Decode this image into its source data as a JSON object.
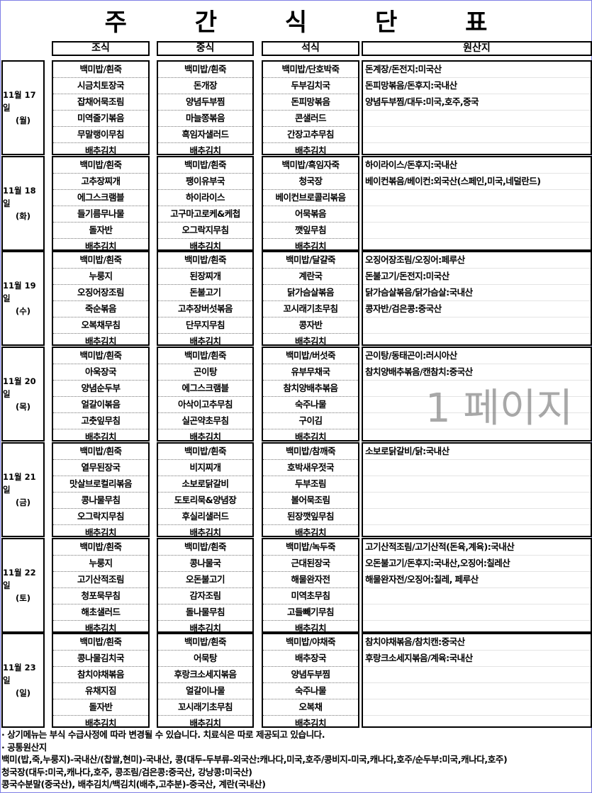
{
  "title": "주 간 식 단 표",
  "headers": {
    "breakfast": "조식",
    "lunch": "중식",
    "dinner": "석식",
    "origin": "원산지"
  },
  "watermark": "1 페이지",
  "days": [
    {
      "date": "11월 17일",
      "weekday": "(월)",
      "breakfast": [
        "백미밥/흰죽",
        "시금치토장국",
        "잡채어묵조림",
        "미역줄기볶음",
        "무말랭이무침",
        "배추김치"
      ],
      "lunch": [
        "백미밥/흰죽",
        "돈개장",
        "양념두부찜",
        "마늘쫑볶음",
        "흑임자샐러드",
        "배추김치"
      ],
      "dinner": [
        "백미밥/단호박죽",
        "두부김치국",
        "돈피망볶음",
        "콘샐러드",
        "간장고추무침",
        "배추김치"
      ],
      "origin": [
        "돈계장/돈전지:미국산",
        "돈피망볶음/돈후지:국내산",
        "양념두부찜/대두:미국,호주,중국",
        "",
        "",
        ""
      ]
    },
    {
      "date": "11월 18일",
      "weekday": "(화)",
      "breakfast": [
        "백미밥/흰죽",
        "고추장찌개",
        "에그스크램블",
        "들기름무나물",
        "돌자반",
        "배추김치"
      ],
      "lunch": [
        "백미밥/흰죽",
        "팽이유부국",
        "하이라이스",
        "고구마고로케&케첩",
        "오그락지무침",
        "배추김치"
      ],
      "dinner": [
        "백미밥/흑임자죽",
        "청국장",
        "베이컨브로콜리볶음",
        "어묵볶음",
        "깻잎무침",
        "배추김치"
      ],
      "origin": [
        "하이라이스/돈후지:국내산",
        "베이컨볶음/베이컨:외국산(스페인,미국,네덜란드)",
        "",
        "",
        "",
        ""
      ]
    },
    {
      "date": "11월 19일",
      "weekday": "(수)",
      "breakfast": [
        "백미밥/흰죽",
        "누룽지",
        "오징어장조림",
        "죽순볶음",
        "오복채무침",
        "배추김치"
      ],
      "lunch": [
        "백미밥/흰죽",
        "된장찌개",
        "돈불고기",
        "고추장버섯볶음",
        "단무지무침",
        "배추김치"
      ],
      "dinner": [
        "백미밥/달걀죽",
        "계란국",
        "닭가슴살볶음",
        "꼬시래기초무침",
        "콩자반",
        "배추김치"
      ],
      "origin": [
        "오징어장조림/오징어:페루산",
        "돈불고기/돈전지:미국산",
        "닭가슴살볶음/닭가슴살:국내산",
        "콩자반/검은콩:중국산",
        "",
        ""
      ]
    },
    {
      "date": "11월 20일",
      "weekday": "(목)",
      "breakfast": [
        "백미밥/흰죽",
        "아욱장국",
        "양념순두부",
        "얼갈이볶음",
        "고춧잎무침",
        "배추김치"
      ],
      "lunch": [
        "백미밥/흰죽",
        "곤이탕",
        "에그스크램블",
        "아삭이고추무침",
        "실곤약초무침",
        "배추김치"
      ],
      "dinner": [
        "백미밥/버섯죽",
        "유부무채국",
        "참치양배추볶음",
        "숙주나물",
        "구이김",
        "배추김치"
      ],
      "origin": [
        "곤이탕/동태곤이:러시아산",
        "참치양배추볶음/캔참치:중국산",
        "",
        "",
        "",
        ""
      ]
    },
    {
      "date": "11월 21일",
      "weekday": "(금)",
      "breakfast": [
        "백미밥/흰죽",
        "열무된장국",
        "맛살브로컬리볶음",
        "콩나물무침",
        "오그락지무침",
        "배추김치"
      ],
      "lunch": [
        "백미밥/흰죽",
        "비지찌개",
        "소보로닭갈비",
        "도토리묵&양념장",
        "후실리샐러드",
        "배추김치"
      ],
      "dinner": [
        "백미밥/참깨죽",
        "호박새우젓국",
        "두부조림",
        "볼어묵조림",
        "된장깻잎무침",
        "배추김치"
      ],
      "origin": [
        "소보로닭갈비/닭:국내산",
        "",
        "",
        "",
        "",
        ""
      ]
    },
    {
      "date": "11월 22일",
      "weekday": "(토)",
      "breakfast": [
        "백미밥/흰죽",
        "누룽지",
        "고기산적조림",
        "청포묵무침",
        "해초샐러드",
        "배추김치"
      ],
      "lunch": [
        "백미밥/흰죽",
        "콩나물국",
        "오돈불고기",
        "감자조림",
        "돌나물무침",
        "배추김치"
      ],
      "dinner": [
        "백미밥/녹두죽",
        "근대된장국",
        "해물완자전",
        "미역초무침",
        "고들빼기무침",
        "배추김치"
      ],
      "origin": [
        "고기산적조림/고기산적(돈육,계육):국내산",
        "오돈불고기/돈후지:국내산,오징어:칠레산",
        "해물완자전/오징어:칠레, 페루산",
        "",
        "",
        ""
      ]
    },
    {
      "date": "11월 23일",
      "weekday": "(일)",
      "breakfast": [
        "백미밥/흰죽",
        "콩나물김치국",
        "참치야채볶음",
        "유채지짐",
        "돌자반",
        "배추김치"
      ],
      "lunch": [
        "백미밥/흰죽",
        "어묵탕",
        "후랑크소세지볶음",
        "얼갈이나물",
        "꼬시래기초무침",
        "배추김치"
      ],
      "dinner": [
        "백미밥/야채죽",
        "배추장국",
        "양념두부찜",
        "숙주나물",
        "오복채",
        "배추김치"
      ],
      "origin": [
        "참치야채볶음/참치캔:중국산",
        "후랑크소세지볶음/계육:국내산",
        "",
        "",
        "",
        ""
      ]
    }
  ],
  "footer": [
    "· 상기메뉴는 부식 수급사정에 따라 변경될 수 있습니다. 치료식은 따로 제공되고 있습니다.",
    "· 공통원산지",
    "백미(밥,죽,누룽지)-국내산/(찹쌀,현미)-국내산, 콩(대두-두부류-외국산:캐나다,미국,호주/콩비지-미국,캐나다,호주/순두부:미국,캐나다,호주)",
    "청국장(대두:미국,캐나다,호주, 콩조림/검은콩:중국산, 강낭콩:미국산)",
    "콩국수분말(중국산), 배추김치/백김치(배추,고추분)-중국산, 계란(국내산)"
  ]
}
